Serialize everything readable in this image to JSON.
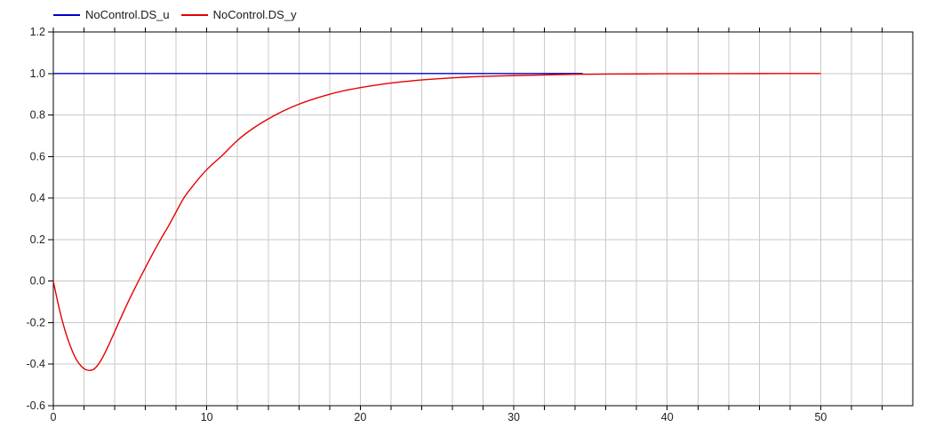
{
  "window": {
    "background": "#ffffff"
  },
  "colors": {
    "grid": "#c9c9c9",
    "axis": "#000000",
    "tick_text": "#1f1f1f",
    "series_u": "#0000cc",
    "series_y": "#e60000"
  },
  "legend": {
    "position": "top-left"
  },
  "chart_data": {
    "type": "line",
    "title": "",
    "xlabel": "",
    "ylabel": "",
    "xlim": [
      0,
      56
    ],
    "ylim": [
      -0.6,
      1.2
    ],
    "grid": true,
    "x_minor_tick_step": 2,
    "x_major_ticks": [
      0,
      10,
      20,
      30,
      40,
      50
    ],
    "x_tick_labels": [
      "0",
      "10",
      "20",
      "30",
      "40",
      "50"
    ],
    "y_ticks": [
      -0.6,
      -0.4,
      -0.2,
      0.0,
      0.2,
      0.4,
      0.6,
      0.8,
      1.0,
      1.2
    ],
    "y_tick_labels": [
      "-0.6",
      "-0.4",
      "-0.2",
      "0.0",
      "0.2",
      "0.4",
      "0.6",
      "0.8",
      "1.0",
      "1.2"
    ],
    "legend_position": "top-left",
    "series": [
      {
        "name": "NoControl.DS_u",
        "color": "#0000cc",
        "smooth": false,
        "points": [
          [
            0,
            1.0
          ],
          [
            34.5,
            1.0
          ]
        ]
      },
      {
        "name": "NoControl.DS_y",
        "color": "#e60000",
        "smooth": true,
        "points": [
          [
            0.0,
            0.0
          ],
          [
            0.3,
            -0.105
          ],
          [
            0.6,
            -0.195
          ],
          [
            0.9,
            -0.27
          ],
          [
            1.2,
            -0.33
          ],
          [
            1.5,
            -0.378
          ],
          [
            1.8,
            -0.408
          ],
          [
            2.1,
            -0.426
          ],
          [
            2.4,
            -0.43
          ],
          [
            2.7,
            -0.421
          ],
          [
            3.1,
            -0.382
          ],
          [
            3.5,
            -0.325
          ],
          [
            3.9,
            -0.26
          ],
          [
            4.3,
            -0.193
          ],
          [
            4.7,
            -0.128
          ],
          [
            5.1,
            -0.066
          ],
          [
            5.6,
            0.008
          ],
          [
            6.0,
            0.065
          ],
          [
            6.5,
            0.135
          ],
          [
            7.0,
            0.202
          ],
          [
            7.5,
            0.265
          ],
          [
            8.0,
            0.333
          ],
          [
            8.5,
            0.4
          ],
          [
            9.0,
            0.45
          ],
          [
            9.5,
            0.496
          ],
          [
            10.0,
            0.537
          ],
          [
            10.5,
            0.572
          ],
          [
            11.0,
            0.605
          ],
          [
            12.0,
            0.678
          ],
          [
            13.0,
            0.735
          ],
          [
            14.0,
            0.781
          ],
          [
            15.0,
            0.82
          ],
          [
            16.0,
            0.852
          ],
          [
            17.0,
            0.878
          ],
          [
            18.0,
            0.9
          ],
          [
            19.0,
            0.918
          ],
          [
            20.0,
            0.932
          ],
          [
            21.0,
            0.944
          ],
          [
            22.0,
            0.954
          ],
          [
            23.0,
            0.962
          ],
          [
            24.0,
            0.969
          ],
          [
            25.0,
            0.974
          ],
          [
            26.0,
            0.979
          ],
          [
            27.0,
            0.983
          ],
          [
            28.0,
            0.986
          ],
          [
            29.0,
            0.988
          ],
          [
            30.0,
            0.99
          ],
          [
            32.0,
            0.993
          ],
          [
            34.0,
            0.996
          ],
          [
            36.0,
            0.997
          ],
          [
            38.0,
            0.998
          ],
          [
            40.0,
            0.9987
          ],
          [
            42.0,
            0.999
          ],
          [
            44.0,
            0.9994
          ],
          [
            46.0,
            0.9996
          ],
          [
            48.0,
            0.9997
          ],
          [
            50.0,
            0.9998
          ]
        ]
      }
    ]
  }
}
